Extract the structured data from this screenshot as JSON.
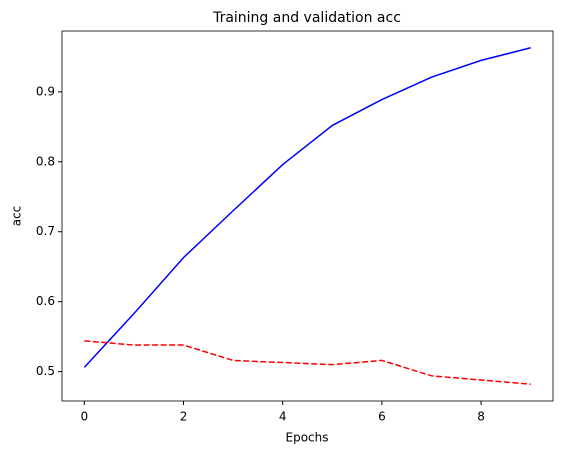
{
  "chart_data": {
    "type": "line",
    "title": "Training and validation acc",
    "x_label": "Epochs",
    "y_label": "acc",
    "x": [
      0,
      1,
      2,
      3,
      4,
      5,
      6,
      7,
      8,
      9
    ],
    "series": [
      {
        "color": "#0000ff",
        "linestyle": "solid",
        "values": [
          0.506,
          0.583,
          0.663,
          0.73,
          0.796,
          0.852,
          0.889,
          0.921,
          0.945,
          0.963
        ]
      },
      {
        "color": "#ff0000",
        "linestyle": "dashed",
        "values": [
          0.544,
          0.538,
          0.538,
          0.516,
          0.513,
          0.51,
          0.516,
          0.494,
          0.488,
          0.482
        ]
      }
    ],
    "xlim": [
      -0.45,
      9.45
    ],
    "xticks": [
      0,
      2,
      4,
      6,
      8
    ],
    "ylim": [
      0.458,
      0.987
    ],
    "yticks": [
      0.5,
      0.6,
      0.7,
      0.8,
      0.9
    ],
    "grid": false
  }
}
